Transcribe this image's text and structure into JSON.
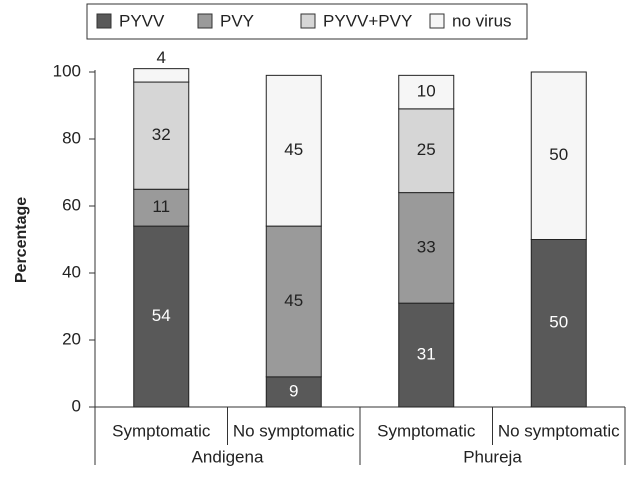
{
  "chart_data": {
    "type": "stacked-bar",
    "y_label": "Percentage",
    "categories": [
      "Symptomatic",
      "No symptomatic",
      "Symptomatic",
      "No symptomatic"
    ],
    "groups": [
      "Andigena",
      "Phureja"
    ],
    "series": [
      {
        "name": "PYVV",
        "color": "#595959",
        "values": [
          54,
          9,
          31,
          50
        ]
      },
      {
        "name": "PVY",
        "color": "#9a9a9a",
        "values": [
          11,
          45,
          33,
          null
        ]
      },
      {
        "name": "PYVV+PVY",
        "color": "#d6d6d6",
        "values": [
          32,
          null,
          25,
          null
        ]
      },
      {
        "name": "no virus",
        "color": "#f6f6f6",
        "values": [
          4,
          45,
          10,
          50
        ]
      }
    ],
    "ylim": [
      0,
      100
    ],
    "yticks": [
      0,
      20,
      40,
      60,
      80,
      100
    ]
  }
}
